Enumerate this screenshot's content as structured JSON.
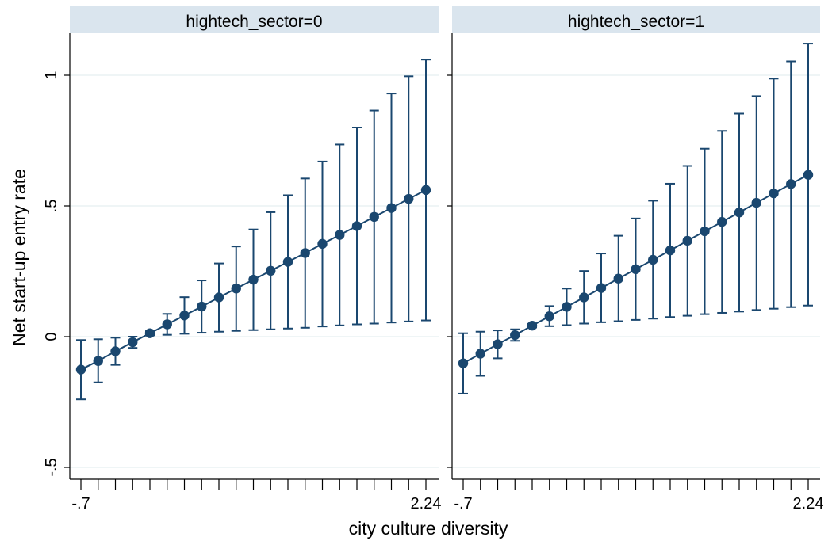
{
  "chart_data": {
    "type": "scatter",
    "xlabel": "city culture diversity",
    "ylabel": "Net start-up entry rate",
    "ylim": [
      -0.5,
      1.0
    ],
    "y_ticks": [
      {
        "value": -0.5,
        "label": "-.5"
      },
      {
        "value": 0,
        "label": "0"
      },
      {
        "value": 0.5,
        "label": ".5"
      },
      {
        "value": 1,
        "label": "1"
      }
    ],
    "x_tick_labels": [
      {
        "index": 0,
        "label": "-.7"
      },
      {
        "index": 20,
        "label": "2.24"
      }
    ],
    "x_range": [
      -0.7,
      2.24
    ],
    "marker_color": "#1a476f",
    "title_bg": "#dae5ee",
    "panels": [
      {
        "title": "hightech_sector=0",
        "points": [
          {
            "x": -0.7,
            "y": -0.126,
            "lo": -0.24,
            "hi": -0.013
          },
          {
            "x": -0.553,
            "y": -0.093,
            "lo": -0.175,
            "hi": -0.01
          },
          {
            "x": -0.406,
            "y": -0.056,
            "lo": -0.108,
            "hi": -0.004
          },
          {
            "x": -0.259,
            "y": -0.021,
            "lo": -0.043,
            "hi": 0.0
          },
          {
            "x": -0.112,
            "y": 0.013,
            "lo": 0.005,
            "hi": 0.021
          },
          {
            "x": 0.035,
            "y": 0.047,
            "lo": 0.007,
            "hi": 0.087
          },
          {
            "x": 0.182,
            "y": 0.081,
            "lo": 0.011,
            "hi": 0.151
          },
          {
            "x": 0.329,
            "y": 0.115,
            "lo": 0.015,
            "hi": 0.215
          },
          {
            "x": 0.476,
            "y": 0.15,
            "lo": 0.019,
            "hi": 0.28
          },
          {
            "x": 0.623,
            "y": 0.184,
            "lo": 0.022,
            "hi": 0.345
          },
          {
            "x": 0.77,
            "y": 0.218,
            "lo": 0.025,
            "hi": 0.41
          },
          {
            "x": 0.917,
            "y": 0.252,
            "lo": 0.028,
            "hi": 0.476
          },
          {
            "x": 1.064,
            "y": 0.286,
            "lo": 0.031,
            "hi": 0.541
          },
          {
            "x": 1.211,
            "y": 0.32,
            "lo": 0.034,
            "hi": 0.605
          },
          {
            "x": 1.358,
            "y": 0.355,
            "lo": 0.039,
            "hi": 0.67
          },
          {
            "x": 1.505,
            "y": 0.389,
            "lo": 0.043,
            "hi": 0.735
          },
          {
            "x": 1.652,
            "y": 0.423,
            "lo": 0.047,
            "hi": 0.8
          },
          {
            "x": 1.799,
            "y": 0.458,
            "lo": 0.05,
            "hi": 0.865
          },
          {
            "x": 1.946,
            "y": 0.492,
            "lo": 0.054,
            "hi": 0.93
          },
          {
            "x": 2.093,
            "y": 0.527,
            "lo": 0.058,
            "hi": 0.996
          },
          {
            "x": 2.24,
            "y": 0.561,
            "lo": 0.062,
            "hi": 1.06
          }
        ]
      },
      {
        "title": "hightech_sector=1",
        "points": [
          {
            "x": -0.7,
            "y": -0.102,
            "lo": -0.218,
            "hi": 0.013
          },
          {
            "x": -0.553,
            "y": -0.065,
            "lo": -0.15,
            "hi": 0.019
          },
          {
            "x": -0.406,
            "y": -0.029,
            "lo": -0.083,
            "hi": 0.024
          },
          {
            "x": -0.259,
            "y": 0.006,
            "lo": -0.016,
            "hi": 0.028
          },
          {
            "x": -0.112,
            "y": 0.042,
            "lo": 0.035,
            "hi": 0.049
          },
          {
            "x": 0.035,
            "y": 0.078,
            "lo": 0.04,
            "hi": 0.117
          },
          {
            "x": 0.182,
            "y": 0.114,
            "lo": 0.044,
            "hi": 0.184
          },
          {
            "x": 0.329,
            "y": 0.15,
            "lo": 0.05,
            "hi": 0.251
          },
          {
            "x": 0.476,
            "y": 0.186,
            "lo": 0.055,
            "hi": 0.318
          },
          {
            "x": 0.623,
            "y": 0.222,
            "lo": 0.059,
            "hi": 0.386
          },
          {
            "x": 0.77,
            "y": 0.258,
            "lo": 0.064,
            "hi": 0.452
          },
          {
            "x": 0.917,
            "y": 0.294,
            "lo": 0.069,
            "hi": 0.52
          },
          {
            "x": 1.064,
            "y": 0.33,
            "lo": 0.075,
            "hi": 0.585
          },
          {
            "x": 1.211,
            "y": 0.367,
            "lo": 0.08,
            "hi": 0.653
          },
          {
            "x": 1.358,
            "y": 0.403,
            "lo": 0.086,
            "hi": 0.719
          },
          {
            "x": 1.505,
            "y": 0.439,
            "lo": 0.091,
            "hi": 0.787
          },
          {
            "x": 1.652,
            "y": 0.475,
            "lo": 0.096,
            "hi": 0.853
          },
          {
            "x": 1.799,
            "y": 0.512,
            "lo": 0.102,
            "hi": 0.92
          },
          {
            "x": 1.946,
            "y": 0.548,
            "lo": 0.107,
            "hi": 0.987
          },
          {
            "x": 2.093,
            "y": 0.584,
            "lo": 0.113,
            "hi": 1.053
          },
          {
            "x": 2.24,
            "y": 0.619,
            "lo": 0.119,
            "hi": 1.121
          }
        ]
      }
    ]
  }
}
